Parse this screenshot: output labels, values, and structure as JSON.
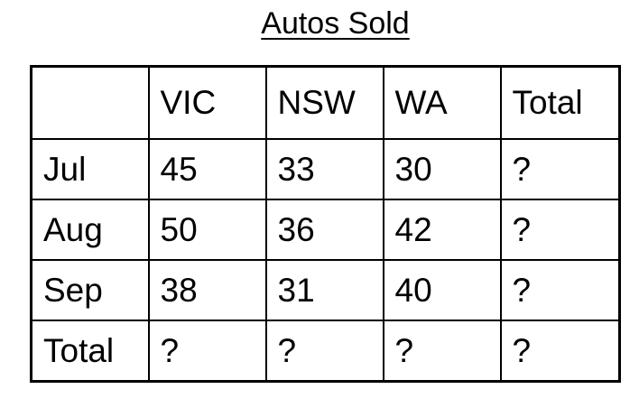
{
  "title": "Autos Sold",
  "table": {
    "columns": [
      "",
      "VIC",
      "NSW",
      "WA",
      "Total"
    ],
    "rows": [
      {
        "label": "Jul",
        "cells": [
          "45",
          "33",
          "30",
          "?"
        ]
      },
      {
        "label": "Aug",
        "cells": [
          "50",
          "36",
          "42",
          "?"
        ]
      },
      {
        "label": "Sep",
        "cells": [
          "38",
          "31",
          "40",
          "?"
        ]
      },
      {
        "label": "Total",
        "cells": [
          "?",
          "?",
          "?",
          "?"
        ]
      }
    ]
  },
  "chart_data": {
    "type": "table",
    "title": "Autos Sold",
    "columns": [
      "VIC",
      "NSW",
      "WA",
      "Total"
    ],
    "rows": [
      "Jul",
      "Aug",
      "Sep",
      "Total"
    ],
    "values": [
      [
        45,
        33,
        30,
        null
      ],
      [
        50,
        36,
        42,
        null
      ],
      [
        38,
        31,
        40,
        null
      ],
      [
        null,
        null,
        null,
        null
      ]
    ]
  }
}
